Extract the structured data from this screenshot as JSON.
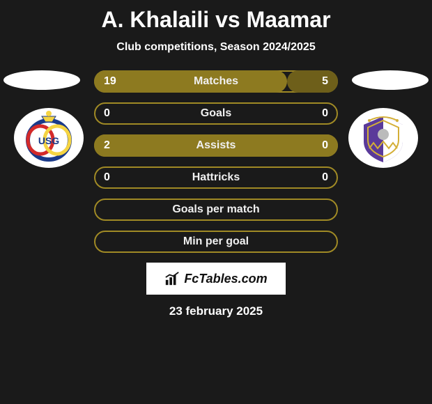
{
  "title": "A. Khalaili vs Maamar",
  "subtitle": "Club competitions, Season 2024/2025",
  "date": "23 february 2025",
  "fctables_label": "FcTables.com",
  "colors": {
    "olive_border": "#a08a25",
    "olive_fill": "#8d7a20",
    "olive_dark_fill": "#6e5f1a",
    "bg": "#1a1a1a",
    "text": "#ffffff"
  },
  "badges": {
    "left": {
      "name": "club-badge-left",
      "primary": "#f5d442",
      "secondary": "#1a3a8a",
      "accent": "#d42a2a",
      "bg": "#ffffff"
    },
    "right": {
      "name": "club-badge-right",
      "primary": "#5a3a9a",
      "secondary": "#ffffff",
      "accent": "#d4af37",
      "bg": "#ffffff"
    }
  },
  "bars": [
    {
      "label": "Matches",
      "left": "19",
      "right": "5",
      "left_pct": 79,
      "right_pct": 21,
      "style": "split"
    },
    {
      "label": "Goals",
      "left": "0",
      "right": "0",
      "left_pct": 0,
      "right_pct": 0,
      "style": "outline"
    },
    {
      "label": "Assists",
      "left": "2",
      "right": "0",
      "left_pct": 100,
      "right_pct": 0,
      "style": "leftfill"
    },
    {
      "label": "Hattricks",
      "left": "0",
      "right": "0",
      "left_pct": 0,
      "right_pct": 0,
      "style": "outline"
    },
    {
      "label": "Goals per match",
      "left": "",
      "right": "",
      "left_pct": 0,
      "right_pct": 0,
      "style": "outline"
    },
    {
      "label": "Min per goal",
      "left": "",
      "right": "",
      "left_pct": 0,
      "right_pct": 0,
      "style": "outline"
    }
  ]
}
